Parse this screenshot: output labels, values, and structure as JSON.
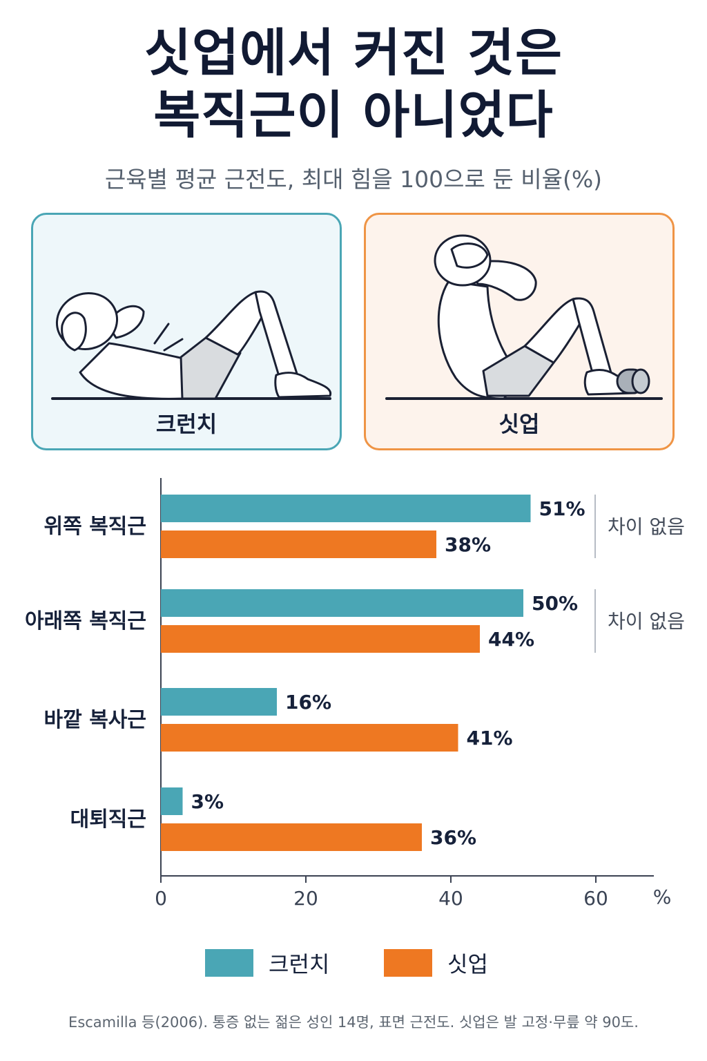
{
  "title": {
    "line1": "싯업에서 커진 것은",
    "line2": "복직근이 아니었다"
  },
  "subtitle": "근육별 평균 근전도, 최대 힘을 100으로 둔 비율(%)",
  "panels": {
    "crunch": {
      "label": "크런치",
      "icon": "crunch-illustration",
      "border_color": "#4aa6b5"
    },
    "situp": {
      "label": "싯업",
      "icon": "situp-illustration",
      "border_color": "#ef9445"
    }
  },
  "chart_data": {
    "type": "bar",
    "orientation": "horizontal",
    "categories": [
      "위쪽 복직근",
      "아래쪽 복직근",
      "바깥 복사근",
      "대퇴직근"
    ],
    "series": [
      {
        "name": "크런치",
        "values": [
          51,
          50,
          16,
          3
        ],
        "color": "#4aa6b5"
      },
      {
        "name": "싯업",
        "values": [
          38,
          44,
          41,
          36
        ],
        "color": "#ee7822"
      }
    ],
    "value_suffix": "%",
    "xlim": [
      0,
      68
    ],
    "xticks": [
      0,
      20,
      40,
      60
    ],
    "xunit": "%",
    "annotations": [
      {
        "category_index": 0,
        "text": "차이 없음"
      },
      {
        "category_index": 1,
        "text": "차이 없음"
      }
    ],
    "legend_position": "bottom",
    "grid": false
  },
  "legend": {
    "crunch": {
      "label": "크런치",
      "color": "#4aa6b5"
    },
    "situp": {
      "label": "싯업",
      "color": "#ee7822"
    }
  },
  "footnote": "Escamilla 등(2006). 통증 없는 젊은 성인 14명, 표면 근전도. 싯업은 발 고정·무릎 약 90도."
}
